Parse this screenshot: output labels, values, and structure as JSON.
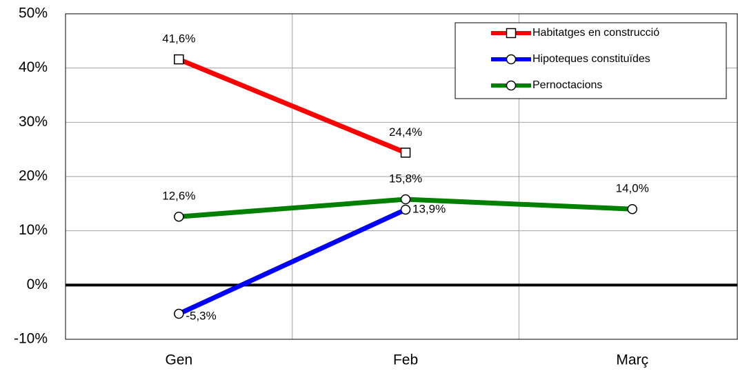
{
  "chart_data": {
    "type": "line",
    "categories": [
      "Gen",
      "Feb",
      "Març"
    ],
    "series": [
      {
        "name": "Habitatges en construcció",
        "color": "#ff0000",
        "label_color": "#ff0000",
        "marker": "square",
        "values": [
          41.6,
          24.4,
          null
        ],
        "value_labels": [
          "41,6%",
          "24,4%",
          null
        ]
      },
      {
        "name": "Hipoteques constituïdes",
        "color": "#0000ff",
        "label_color": "#1a1acc",
        "marker": "circle",
        "values": [
          -5.3,
          13.9,
          null
        ],
        "value_labels": [
          "-5,3%",
          "13,9%",
          null
        ]
      },
      {
        "name": "Pernoctacions",
        "color": "#008000",
        "label_color": "#2e8b57",
        "marker": "circle",
        "values": [
          12.6,
          15.8,
          14.0
        ],
        "value_labels": [
          "12,6%",
          "15,8%",
          "14,0%"
        ]
      }
    ],
    "ylim": [
      -10,
      50
    ],
    "yticks": [
      {
        "value": -10,
        "label": "-10%"
      },
      {
        "value": 0,
        "label": "0%"
      },
      {
        "value": 10,
        "label": "10%"
      },
      {
        "value": 20,
        "label": "20%"
      },
      {
        "value": 30,
        "label": "30%"
      },
      {
        "value": 40,
        "label": "40%"
      },
      {
        "value": 50,
        "label": "50%"
      }
    ],
    "grid": true,
    "legend": "upper right"
  }
}
